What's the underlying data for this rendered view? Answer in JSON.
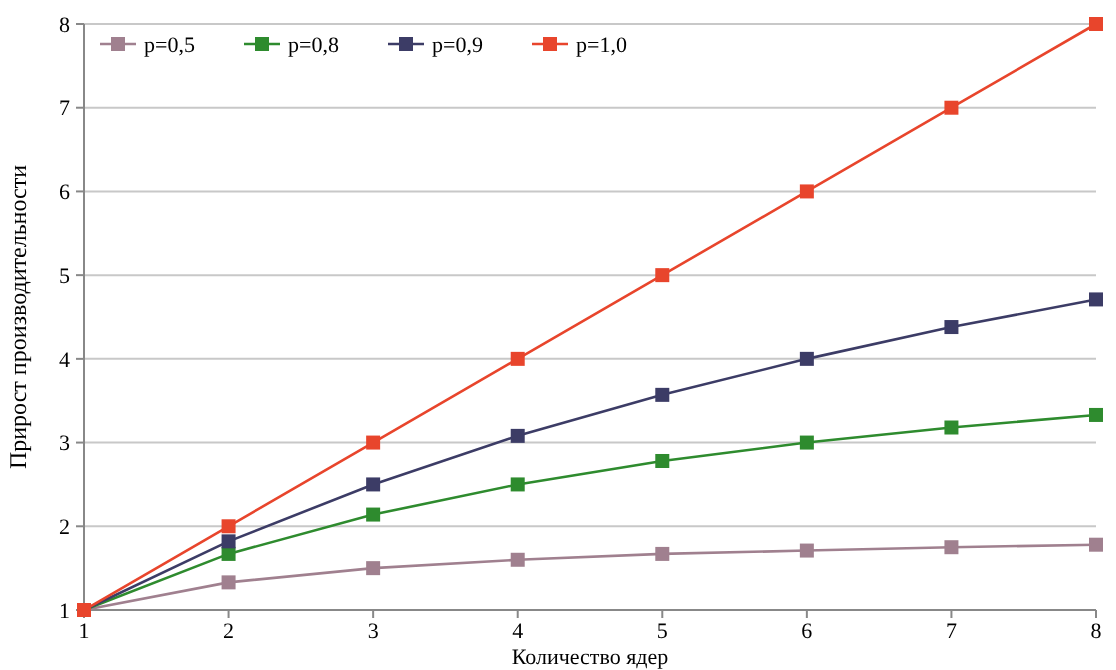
{
  "chart_data": {
    "type": "line",
    "xlabel": "Количество ядер",
    "ylabel": "Прирост производительности",
    "x": [
      1,
      2,
      3,
      4,
      5,
      6,
      7,
      8
    ],
    "xlim": [
      1,
      8
    ],
    "xticks": [
      1,
      2,
      3,
      4,
      5,
      6,
      7,
      8
    ],
    "ylim": [
      1,
      8
    ],
    "yticks": [
      1,
      2,
      3,
      4,
      5,
      6,
      7,
      8
    ],
    "grid": "y",
    "legend": "top left",
    "marker": "square",
    "line_style": "solid",
    "series": [
      {
        "name": "p=0,5",
        "color": "#a0808f",
        "values": [
          1,
          1.33,
          1.5,
          1.6,
          1.67,
          1.71,
          1.75,
          1.78
        ]
      },
      {
        "name": "p=0,8",
        "color": "#2e8b2e",
        "values": [
          1,
          1.67,
          2.14,
          2.5,
          2.78,
          3,
          3.18,
          3.33
        ]
      },
      {
        "name": "p=0,9",
        "color": "#3c3c66",
        "values": [
          1,
          1.82,
          2.5,
          3.08,
          3.57,
          4,
          4.38,
          4.71
        ]
      },
      {
        "name": "p=1,0",
        "color": "#e8452c",
        "values": [
          1,
          2,
          3,
          4,
          5,
          6,
          7,
          8
        ]
      }
    ]
  }
}
